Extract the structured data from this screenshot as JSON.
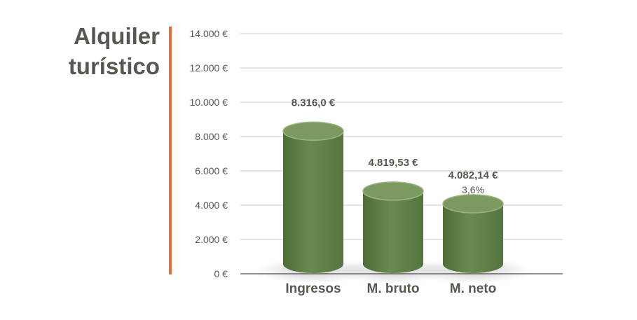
{
  "chart_data": {
    "type": "bar",
    "style": "3d-cylinder",
    "title_lines": [
      "Alquiler",
      "turístico"
    ],
    "categories": [
      "Ingresos",
      "M. bruto",
      "M. neto"
    ],
    "values": [
      8316.0,
      4819.53,
      4082.14
    ],
    "data_labels": [
      "8.316,0 €",
      "4.819,53 €",
      "4.082,14 €"
    ],
    "secondary_labels": [
      "",
      "",
      "3,6%"
    ],
    "ylim": [
      0,
      14000
    ],
    "yticks": [
      0,
      2000,
      4000,
      6000,
      8000,
      10000,
      12000,
      14000
    ],
    "ytick_labels": [
      "0 €",
      "2.000 €",
      "4.000 €",
      "6.000 €",
      "8.000 €",
      "10.000 €",
      "12.000 €",
      "14.000 €"
    ],
    "grid": true,
    "legend": "none",
    "colors": {
      "bar_body": "#5f7f45",
      "bar_top": "#7c9a60",
      "accent": "#e8703a",
      "grid": "#c8c8c8",
      "text": "#5a5751"
    }
  }
}
